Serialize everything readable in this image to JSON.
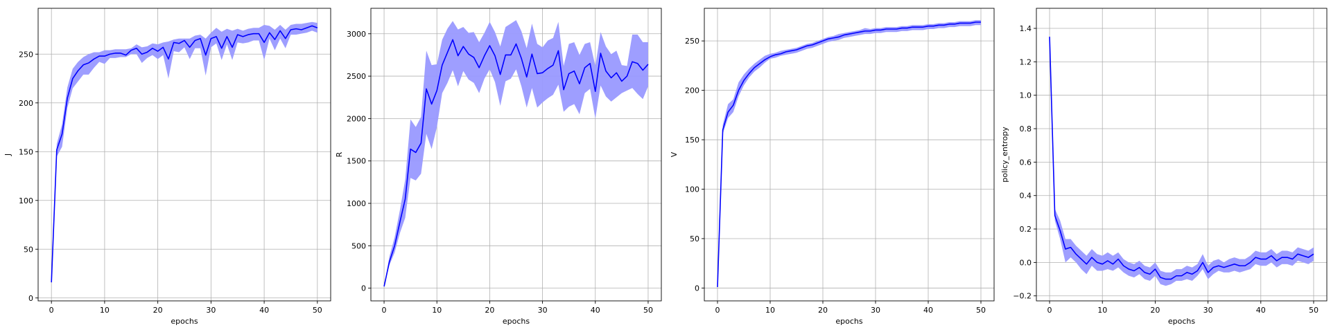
{
  "figure": {
    "background": "#ffffff",
    "line_color": "#0000ff",
    "band_color": "#9999ff",
    "grid_color": "#b0b0b0"
  },
  "chart_data": [
    {
      "type": "line",
      "xlabel": "epochs",
      "ylabel": "J",
      "xlim": [
        -2.5,
        52.5
      ],
      "ylim": [
        -3,
        297
      ],
      "xticks": [
        0,
        10,
        20,
        30,
        40,
        50
      ],
      "yticks": [
        0,
        50,
        100,
        150,
        200,
        250
      ],
      "grid": true,
      "x": [
        0,
        1,
        2,
        3,
        4,
        5,
        6,
        7,
        8,
        9,
        10,
        11,
        12,
        13,
        14,
        15,
        16,
        17,
        18,
        19,
        20,
        21,
        22,
        23,
        24,
        25,
        26,
        27,
        28,
        29,
        30,
        31,
        32,
        33,
        34,
        35,
        36,
        37,
        38,
        39,
        40,
        41,
        42,
        43,
        44,
        45,
        46,
        47,
        48,
        49,
        50
      ],
      "series": [
        {
          "values": [
            16,
            152,
            168,
            205,
            225,
            233,
            239,
            241,
            245,
            248,
            248,
            250,
            251,
            251,
            249,
            254,
            256,
            250,
            252,
            256,
            253,
            257,
            245,
            262,
            261,
            264,
            257,
            264,
            266,
            249,
            266,
            268,
            256,
            268,
            257,
            270,
            268,
            270,
            271,
            271,
            262,
            272,
            265,
            274,
            266,
            275,
            276,
            275,
            277,
            279,
            277
          ],
          "lower": [
            16,
            145,
            155,
            195,
            215,
            222,
            229,
            229,
            236,
            242,
            240,
            246,
            246,
            247,
            247,
            250,
            250,
            241,
            246,
            249,
            245,
            249,
            225,
            253,
            252,
            257,
            245,
            256,
            256,
            228,
            257,
            261,
            244,
            260,
            244,
            262,
            261,
            262,
            264,
            264,
            244,
            266,
            254,
            266,
            256,
            270,
            270,
            271,
            272,
            274,
            272
          ],
          "upper": [
            16,
            158,
            178,
            216,
            235,
            242,
            247,
            250,
            252,
            252,
            254,
            254,
            255,
            255,
            255,
            256,
            260,
            257,
            258,
            261,
            260,
            262,
            263,
            265,
            266,
            266,
            266,
            269,
            270,
            266,
            272,
            277,
            273,
            276,
            274,
            276,
            274,
            276,
            277,
            277,
            280,
            279,
            275,
            280,
            275,
            280,
            281,
            281,
            282,
            283,
            282
          ]
        }
      ]
    },
    {
      "type": "line",
      "xlabel": "epochs",
      "ylabel": "R",
      "xlim": [
        -2.5,
        52.5
      ],
      "ylim": [
        -150,
        3300
      ],
      "xticks": [
        0,
        10,
        20,
        30,
        40,
        50
      ],
      "yticks": [
        0,
        500,
        1000,
        1500,
        2000,
        2500,
        3000
      ],
      "grid": true,
      "x": [
        0,
        1,
        2,
        3,
        4,
        5,
        6,
        7,
        8,
        9,
        10,
        11,
        12,
        13,
        14,
        15,
        16,
        17,
        18,
        19,
        20,
        21,
        22,
        23,
        24,
        25,
        26,
        27,
        28,
        29,
        30,
        31,
        32,
        33,
        34,
        35,
        36,
        37,
        38,
        39,
        40,
        41,
        42,
        43,
        44,
        45,
        46,
        47,
        48,
        49,
        50
      ],
      "series": [
        {
          "values": [
            20,
            310,
            500,
            780,
            1050,
            1640,
            1600,
            1710,
            2350,
            2170,
            2330,
            2630,
            2780,
            2930,
            2740,
            2850,
            2760,
            2720,
            2600,
            2740,
            2860,
            2740,
            2520,
            2750,
            2750,
            2880,
            2710,
            2490,
            2760,
            2530,
            2540,
            2590,
            2630,
            2800,
            2340,
            2530,
            2560,
            2410,
            2600,
            2650,
            2320,
            2770,
            2560,
            2480,
            2540,
            2440,
            2500,
            2670,
            2650,
            2570,
            2640
          ],
          "lower": [
            20,
            270,
            420,
            650,
            830,
            1300,
            1270,
            1350,
            1820,
            1640,
            1900,
            2300,
            2420,
            2570,
            2380,
            2560,
            2460,
            2420,
            2300,
            2470,
            2580,
            2430,
            2150,
            2440,
            2470,
            2580,
            2380,
            2130,
            2360,
            2130,
            2190,
            2240,
            2280,
            2400,
            2080,
            2140,
            2170,
            2050,
            2300,
            2350,
            2000,
            2390,
            2260,
            2200,
            2250,
            2300,
            2330,
            2360,
            2290,
            2230,
            2380
          ],
          "upper": [
            20,
            370,
            600,
            920,
            1280,
            1990,
            1900,
            2020,
            2800,
            2630,
            2640,
            2930,
            3060,
            3150,
            3050,
            3080,
            3010,
            3020,
            2900,
            3010,
            3140,
            3020,
            2850,
            3080,
            3120,
            3160,
            3030,
            2830,
            3120,
            2880,
            2840,
            2920,
            2950,
            3140,
            2620,
            2880,
            2900,
            2750,
            2880,
            2900,
            2620,
            3020,
            2850,
            2760,
            2800,
            2630,
            2620,
            2990,
            2990,
            2900,
            2900
          ]
        }
      ]
    },
    {
      "type": "line",
      "xlabel": "epochs",
      "ylabel": "V",
      "xlim": [
        -2.5,
        52.5
      ],
      "ylim": [
        -13,
        283
      ],
      "xticks": [
        0,
        10,
        20,
        30,
        40,
        50
      ],
      "yticks": [
        0,
        50,
        100,
        150,
        200,
        250
      ],
      "grid": true,
      "x": [
        0,
        1,
        2,
        3,
        4,
        5,
        6,
        7,
        8,
        9,
        10,
        11,
        12,
        13,
        14,
        15,
        16,
        17,
        18,
        19,
        20,
        21,
        22,
        23,
        24,
        25,
        26,
        27,
        28,
        29,
        30,
        31,
        32,
        33,
        34,
        35,
        36,
        37,
        38,
        39,
        40,
        41,
        42,
        43,
        44,
        45,
        46,
        47,
        48,
        49,
        50
      ],
      "series": [
        {
          "values": [
            1,
            160,
            178,
            185,
            200,
            210,
            217,
            223,
            227,
            231,
            234,
            236,
            237,
            239,
            240,
            241,
            243,
            245,
            246,
            248,
            250,
            252,
            253,
            254,
            256,
            257,
            258,
            259,
            260,
            260,
            261,
            261,
            262,
            262,
            262,
            263,
            263,
            264,
            264,
            264,
            265,
            265,
            266,
            266,
            267,
            267,
            268,
            268,
            268,
            269,
            269
          ],
          "lower": [
            1,
            156,
            172,
            178,
            194,
            205,
            213,
            219,
            223,
            228,
            232,
            233,
            235,
            236,
            237,
            238,
            240,
            242,
            243,
            245,
            247,
            249,
            250,
            251,
            253,
            254,
            255,
            256,
            257,
            257,
            258,
            258,
            259,
            259,
            259,
            260,
            260,
            261,
            261,
            261,
            262,
            262,
            263,
            263,
            264,
            264,
            265,
            265,
            265,
            266,
            266
          ],
          "upper": [
            1,
            165,
            186,
            191,
            208,
            216,
            222,
            227,
            231,
            235,
            237,
            238,
            240,
            241,
            242,
            243,
            245,
            247,
            248,
            250,
            252,
            254,
            255,
            257,
            258,
            259,
            260,
            261,
            263,
            262,
            263,
            263,
            264,
            264,
            264,
            265,
            265,
            266,
            266,
            266,
            267,
            267,
            268,
            268,
            269,
            269,
            270,
            270,
            270,
            271,
            271
          ]
        }
      ]
    },
    {
      "type": "line",
      "xlabel": "epochs",
      "ylabel": "policy_entropy",
      "xlim": [
        -2.5,
        52.5
      ],
      "ylim": [
        -0.23,
        1.52
      ],
      "xticks": [
        0,
        10,
        20,
        30,
        40,
        50
      ],
      "yticks": [
        -0.2,
        0.0,
        0.2,
        0.4,
        0.6,
        0.8,
        1.0,
        1.2,
        1.4
      ],
      "ytick_labels": [
        "−0.2",
        "0.0",
        "0.2",
        "0.4",
        "0.6",
        "0.8",
        "1.0",
        "1.2",
        "1.4"
      ],
      "grid": true,
      "x": [
        0,
        1,
        2,
        3,
        4,
        5,
        6,
        7,
        8,
        9,
        10,
        11,
        12,
        13,
        14,
        15,
        16,
        17,
        18,
        19,
        20,
        21,
        22,
        23,
        24,
        25,
        26,
        27,
        28,
        29,
        30,
        31,
        32,
        33,
        34,
        35,
        36,
        37,
        38,
        39,
        40,
        41,
        42,
        43,
        44,
        45,
        46,
        47,
        48,
        49,
        50
      ],
      "series": [
        {
          "values": [
            1.35,
            0.28,
            0.19,
            0.08,
            0.09,
            0.05,
            0.02,
            -0.01,
            0.03,
            0.0,
            -0.01,
            0.01,
            -0.01,
            0.02,
            -0.02,
            -0.04,
            -0.05,
            -0.03,
            -0.06,
            -0.07,
            -0.04,
            -0.09,
            -0.1,
            -0.1,
            -0.08,
            -0.08,
            -0.06,
            -0.07,
            -0.05,
            0.0,
            -0.06,
            -0.03,
            -0.02,
            -0.03,
            -0.02,
            -0.01,
            -0.02,
            -0.02,
            0.0,
            0.03,
            0.02,
            0.02,
            0.04,
            0.01,
            0.03,
            0.03,
            0.02,
            0.05,
            0.04,
            0.03,
            0.05
          ],
          "lower": [
            1.35,
            0.25,
            0.14,
            0.0,
            0.03,
            0.0,
            -0.04,
            -0.07,
            -0.02,
            -0.05,
            -0.05,
            -0.04,
            -0.05,
            -0.03,
            -0.06,
            -0.08,
            -0.09,
            -0.07,
            -0.1,
            -0.11,
            -0.08,
            -0.13,
            -0.14,
            -0.13,
            -0.11,
            -0.11,
            -0.1,
            -0.11,
            -0.08,
            -0.04,
            -0.1,
            -0.07,
            -0.05,
            -0.06,
            -0.06,
            -0.05,
            -0.06,
            -0.05,
            -0.04,
            -0.01,
            -0.02,
            -0.02,
            0.0,
            -0.03,
            -0.01,
            -0.01,
            -0.02,
            0.01,
            0.0,
            -0.01,
            0.01
          ],
          "upper": [
            1.35,
            0.32,
            0.25,
            0.14,
            0.14,
            0.1,
            0.07,
            0.04,
            0.08,
            0.05,
            0.04,
            0.06,
            0.04,
            0.06,
            0.02,
            0.0,
            -0.01,
            0.01,
            -0.02,
            -0.03,
            0.0,
            -0.05,
            -0.06,
            -0.06,
            -0.04,
            -0.04,
            -0.02,
            -0.03,
            -0.01,
            0.05,
            -0.02,
            0.01,
            0.02,
            0.0,
            0.02,
            0.03,
            0.02,
            0.02,
            0.04,
            0.07,
            0.06,
            0.06,
            0.08,
            0.05,
            0.07,
            0.07,
            0.06,
            0.09,
            0.08,
            0.07,
            0.09
          ]
        }
      ]
    }
  ]
}
